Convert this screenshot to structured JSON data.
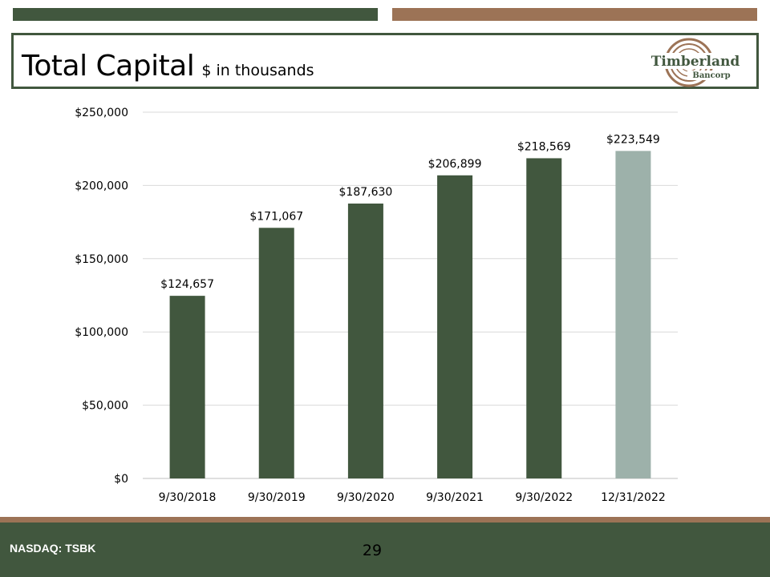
{
  "slide": {
    "title": "Total Capital",
    "subtitle": "$ in thousands",
    "footer_ticker": "NASDAQ: TSBK",
    "page_number": "29"
  },
  "logo": {
    "name": "Timberland",
    "subname": "Bancorp"
  },
  "colors": {
    "green": "#41573e",
    "brown": "#9c7356",
    "highlight_bar": "#9db1aa",
    "gridline": "#d9d9d9"
  },
  "chart_data": {
    "type": "bar",
    "categories": [
      "9/30/2018",
      "9/30/2019",
      "9/30/2020",
      "9/30/2021",
      "9/30/2022",
      "12/31/2022"
    ],
    "values": [
      124657,
      171067,
      187630,
      206899,
      218569,
      223549
    ],
    "data_labels": [
      "$124,657",
      "$171,067",
      "$187,630",
      "$206,899",
      "$218,569",
      "$223,549"
    ],
    "highlight_index": 5,
    "ylim": [
      0,
      250000
    ],
    "yticks": [
      0,
      50000,
      100000,
      150000,
      200000,
      250000
    ],
    "ytick_labels": [
      "$0",
      "$50,000",
      "$100,000",
      "$150,000",
      "$200,000",
      "$250,000"
    ],
    "grid": true,
    "legend": false
  }
}
